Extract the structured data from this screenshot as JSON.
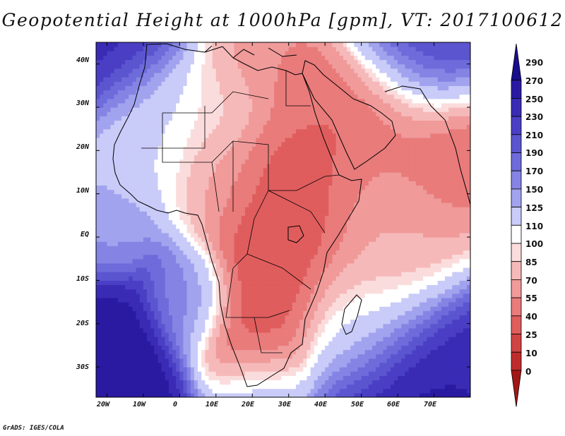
{
  "title": "Geopotential Height at 1000hPa [gpm], VT: 2017100612",
  "credit": "GrADS: IGES/COLA",
  "lat_labels": [
    "40N",
    "30N",
    "20N",
    "10N",
    "EQ",
    "10S",
    "20S",
    "30S"
  ],
  "lon_labels": [
    "20W",
    "10W",
    "0",
    "10E",
    "20E",
    "30E",
    "40E",
    "50E",
    "60E",
    "70E"
  ],
  "colorbar": {
    "labels": [
      "290",
      "270",
      "250",
      "230",
      "210",
      "190",
      "170",
      "150",
      "125",
      "110",
      "100",
      "85",
      "70",
      "55",
      "40",
      "25",
      "10",
      "0"
    ],
    "colors": [
      "#1a0d8e",
      "#2a1aa2",
      "#3a2bb5",
      "#4a3fc4",
      "#5b55d0",
      "#6e6bdb",
      "#8584e4",
      "#a2a3ee",
      "#c9cbf8",
      "#ffffff",
      "#fbdcdc",
      "#f6b9b9",
      "#f09a9a",
      "#e97b7b",
      "#e05d5d",
      "#d24343",
      "#bf2b2b",
      "#a41616"
    ]
  },
  "map_region": {
    "lon_range": [
      -23,
      80
    ],
    "lat_range": [
      -37,
      45
    ]
  },
  "chart_data": {
    "type": "heatmap",
    "title": "Geopotential Height at 1000hPa [gpm], VT: 2017100612",
    "variable": "Geopotential Height at 1000hPa",
    "units": "gpm",
    "valid_time": "2017100612",
    "contour_levels": [
      0,
      10,
      25,
      40,
      55,
      70,
      85,
      100,
      110,
      125,
      150,
      170,
      190,
      210,
      230,
      250,
      270,
      290
    ],
    "lon_range": [
      -23,
      80
    ],
    "lat_range": [
      -37,
      45
    ],
    "lon_ticks": [
      -20,
      -10,
      0,
      10,
      20,
      30,
      40,
      50,
      60,
      70
    ],
    "lat_ticks": [
      40,
      30,
      20,
      10,
      0,
      -10,
      -20,
      -30
    ],
    "background_value": 230,
    "features": [
      {
        "lon": -22,
        "lat": -36,
        "value": 290,
        "spread": 11
      },
      {
        "lon": -23,
        "lat": 45,
        "value": 260,
        "spread": 11
      },
      {
        "lon": 68,
        "lat": 44,
        "value": 250,
        "spread": 10
      },
      {
        "lon": 62,
        "lat": -36,
        "value": 280,
        "spread": 12
      },
      {
        "lon": 80,
        "lat": -30,
        "value": 270,
        "spread": 10
      },
      {
        "lon": 22,
        "lat": -36,
        "value": 175,
        "spread": 7
      },
      {
        "lon": -15,
        "lat": 20,
        "value": 125,
        "spread": 8
      },
      {
        "lon": -5,
        "lat": 26,
        "value": 122,
        "spread": 9
      },
      {
        "lon": -20,
        "lat": 5,
        "value": 165,
        "spread": 6
      },
      {
        "lon": 5,
        "lat": -15,
        "value": 190,
        "spread": 6
      },
      {
        "lon": 10,
        "lat": 30,
        "value": 105,
        "spread": 7
      },
      {
        "lon": 20,
        "lat": 40,
        "value": 72,
        "spread": 8
      },
      {
        "lon": 33,
        "lat": 38,
        "value": 58,
        "spread": 7
      },
      {
        "lon": 10,
        "lat": 16,
        "value": 80,
        "spread": 8
      },
      {
        "lon": 25,
        "lat": 12,
        "value": 45,
        "spread": 9
      },
      {
        "lon": 35,
        "lat": 4,
        "value": 30,
        "spread": 9
      },
      {
        "lon": 27,
        "lat": -8,
        "value": 32,
        "spread": 10
      },
      {
        "lon": 40,
        "lat": 22,
        "value": 45,
        "spread": 9
      },
      {
        "lon": 55,
        "lat": 28,
        "value": 48,
        "spread": 10
      },
      {
        "lon": 75,
        "lat": 20,
        "value": 38,
        "spread": 10
      },
      {
        "lon": 60,
        "lat": 5,
        "value": 78,
        "spread": 14
      },
      {
        "lon": 55,
        "lat": -5,
        "value": 88,
        "spread": 11
      },
      {
        "lon": 48,
        "lat": -20,
        "value": 118,
        "spread": 9
      },
      {
        "lon": 22,
        "lat": -27,
        "value": 45,
        "spread": 8
      },
      {
        "lon": 18,
        "lat": -18,
        "value": 40,
        "spread": 8
      }
    ]
  }
}
